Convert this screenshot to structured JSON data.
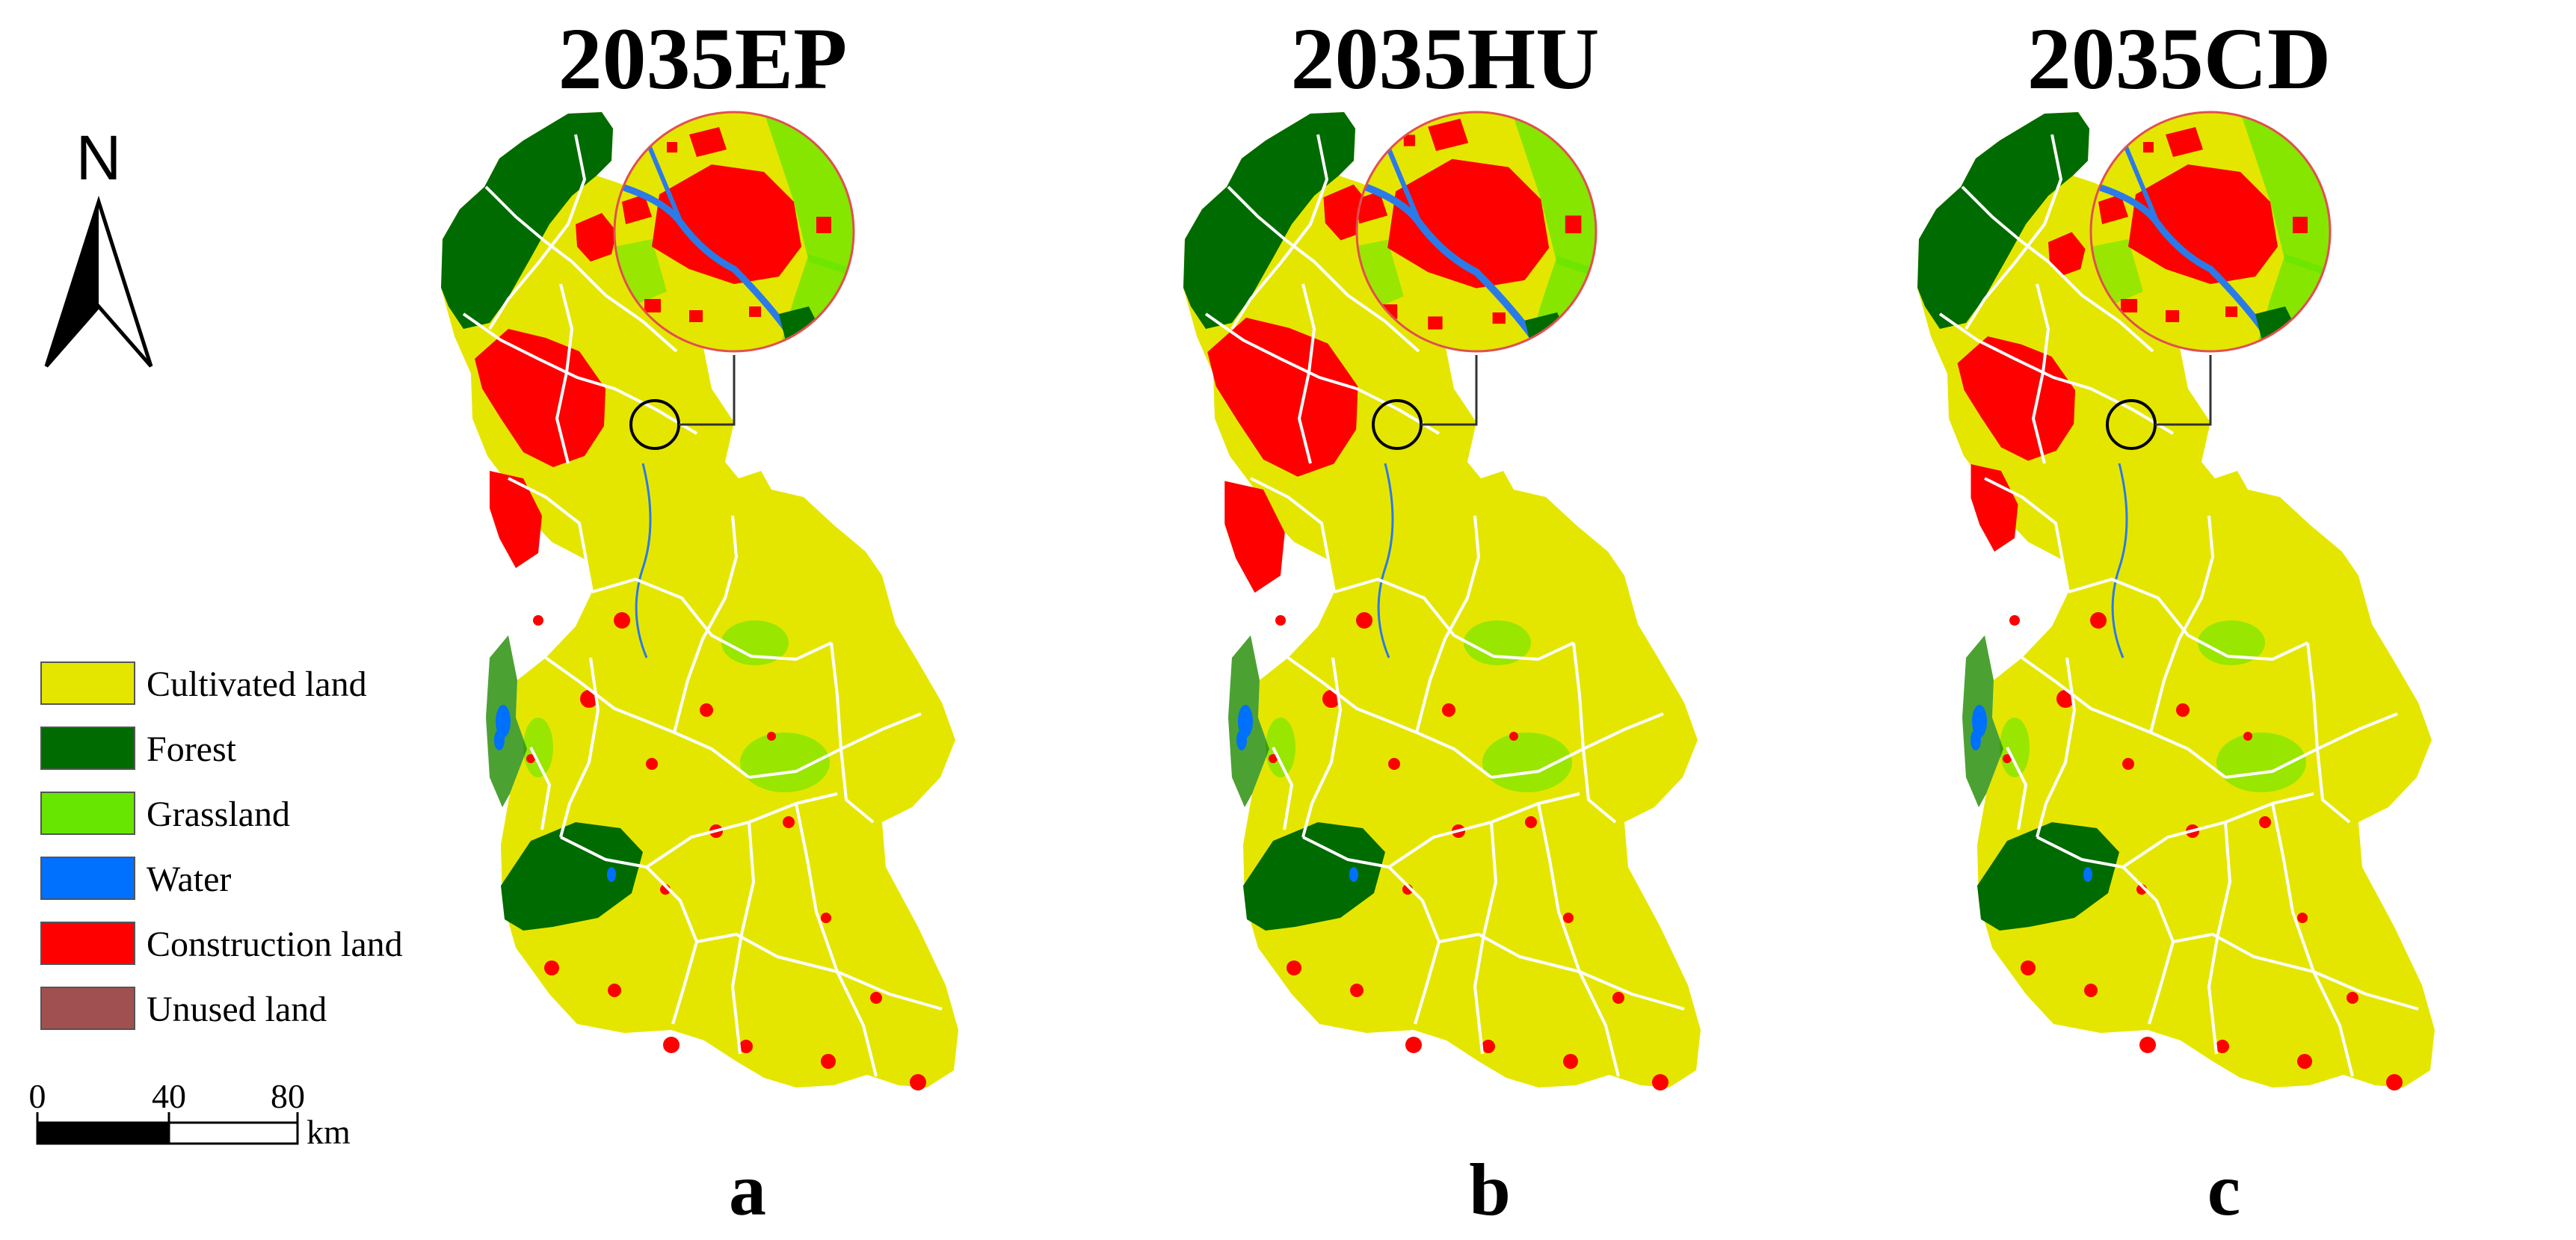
{
  "north_arrow": {
    "label": "N"
  },
  "legend": [
    {
      "label": "Cultivated land",
      "color": "#e5e600"
    },
    {
      "label": "Forest",
      "color": "#006b00"
    },
    {
      "label": "Grassland",
      "color": "#66e600"
    },
    {
      "label": "Water",
      "color": "#0070ff"
    },
    {
      "label": "Construction land",
      "color": "#ff0000"
    },
    {
      "label": "Unused land",
      "color": "#a05050"
    }
  ],
  "scale_bar": {
    "ticks": [
      "0",
      "40",
      "80"
    ],
    "unit": "km"
  },
  "panels": [
    {
      "title": "2035EP",
      "letter": "a"
    },
    {
      "title": "2035HU",
      "letter": "b"
    },
    {
      "title": "2035CD",
      "letter": "c"
    }
  ]
}
